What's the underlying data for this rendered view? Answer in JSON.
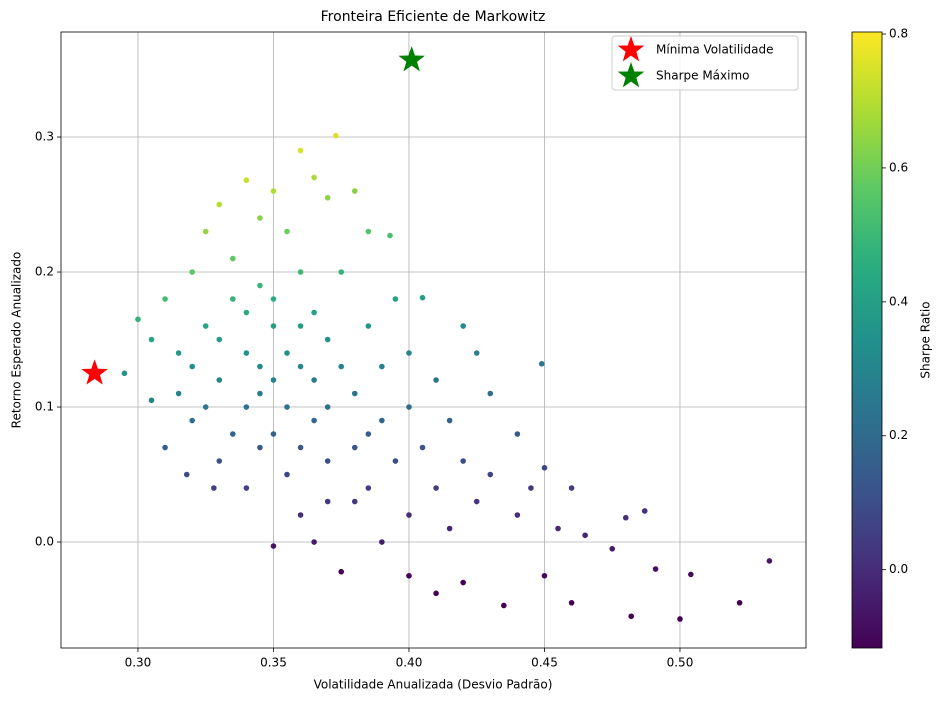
{
  "chart_data": {
    "type": "scatter",
    "title": "Fronteira Eficiente de Markowitz",
    "xlabel": "Volatilidade Anualizada (Desvio Padrão)",
    "ylabel": "Retorno Esperado Anualizado",
    "colorbar_label": "Sharpe Ratio",
    "colormap": "viridis",
    "grid": true,
    "legend": "upper right",
    "xlim": [
      0.2716,
      0.5465
    ],
    "ylim": [
      -0.0785,
      0.3778
    ],
    "clim": [
      -0.117,
      0.803
    ],
    "xticks": [
      {
        "value": 0.3,
        "label": "0.30"
      },
      {
        "value": 0.35,
        "label": "0.35"
      },
      {
        "value": 0.4,
        "label": "0.40"
      },
      {
        "value": 0.45,
        "label": "0.45"
      },
      {
        "value": 0.5,
        "label": "0.50"
      }
    ],
    "yticks": [
      {
        "value": 0,
        "label": "0.0"
      },
      0.1,
      0.2,
      0.3
    ],
    "cticks": [
      {
        "value": 0,
        "label": "0.0"
      },
      0.2,
      0.4,
      0.6,
      0.8
    ],
    "x": [
      0.3,
      0.295,
      0.305,
      0.31,
      0.315,
      0.32,
      0.32,
      0.325,
      0.325,
      0.33,
      0.33,
      0.33,
      0.335,
      0.335,
      0.34,
      0.34,
      0.34,
      0.34,
      0.345,
      0.345,
      0.345,
      0.35,
      0.35,
      0.35,
      0.35,
      0.35,
      0.355,
      0.355,
      0.36,
      0.36,
      0.36,
      0.36,
      0.365,
      0.365,
      0.365,
      0.365,
      0.37,
      0.37,
      0.37,
      0.373,
      0.375,
      0.375,
      0.38,
      0.38,
      0.38,
      0.385,
      0.385,
      0.385,
      0.39,
      0.39,
      0.393,
      0.395,
      0.395,
      0.4,
      0.4,
      0.4,
      0.4,
      0.405,
      0.405,
      0.41,
      0.41,
      0.41,
      0.415,
      0.415,
      0.42,
      0.42,
      0.42,
      0.425,
      0.425,
      0.43,
      0.43,
      0.435,
      0.44,
      0.44,
      0.445,
      0.449,
      0.45,
      0.45,
      0.455,
      0.46,
      0.46,
      0.465,
      0.475,
      0.48,
      0.482,
      0.487,
      0.491,
      0.5,
      0.504,
      0.522,
      0.533,
      0.315,
      0.32,
      0.325,
      0.33,
      0.335,
      0.34,
      0.345,
      0.345,
      0.35,
      0.355,
      0.355,
      0.36,
      0.36,
      0.365,
      0.37,
      0.37,
      0.375,
      0.38,
      0.385,
      0.39,
      0.31,
      0.305,
      0.318,
      0.328
    ],
    "values": [
      0.165,
      0.125,
      0.105,
      0.18,
      0.14,
      0.2,
      0.09,
      0.23,
      0.16,
      0.25,
      0.12,
      0.06,
      0.21,
      0.18,
      0.268,
      0.14,
      0.1,
      0.04,
      0.24,
      0.19,
      0.07,
      0.26,
      0.16,
      0.12,
      0.08,
      -0.003,
      0.23,
      0.05,
      0.29,
      0.2,
      0.13,
      0.02,
      0.27,
      0.17,
      0.09,
      0.0,
      0.255,
      0.15,
      0.06,
      0.301,
      0.2,
      -0.022,
      0.26,
      0.11,
      0.03,
      0.23,
      0.16,
      0.08,
      0.13,
      0.0,
      0.227,
      0.18,
      0.06,
      0.14,
      0.1,
      0.02,
      -0.025,
      0.181,
      0.07,
      0.12,
      0.04,
      -0.038,
      0.09,
      0.01,
      0.16,
      0.06,
      -0.03,
      0.14,
      0.03,
      0.11,
      0.05,
      -0.047,
      0.08,
      0.02,
      0.04,
      0.132,
      0.055,
      -0.025,
      0.01,
      0.04,
      -0.045,
      0.005,
      -0.005,
      0.018,
      -0.055,
      0.023,
      -0.02,
      -0.057,
      -0.024,
      -0.045,
      -0.014,
      0.11,
      0.13,
      0.1,
      0.15,
      0.08,
      0.17,
      0.13,
      0.11,
      0.18,
      0.14,
      0.1,
      0.16,
      0.07,
      0.12,
      0.1,
      0.03,
      0.13,
      0.07,
      0.04,
      0.09,
      0.07,
      0.15,
      0.05,
      0.04
    ],
    "color_values": [
      0.48,
      0.36,
      0.28,
      0.52,
      0.38,
      0.56,
      0.22,
      0.65,
      0.43,
      0.7,
      0.3,
      0.12,
      0.57,
      0.48,
      0.73,
      0.35,
      0.24,
      0.06,
      0.64,
      0.49,
      0.14,
      0.69,
      0.4,
      0.29,
      0.17,
      -0.07,
      0.59,
      0.08,
      0.75,
      0.5,
      0.31,
      0.0,
      0.68,
      0.41,
      0.19,
      -0.05,
      0.64,
      0.35,
      0.11,
      0.75,
      0.48,
      -0.11,
      0.63,
      0.24,
      0.03,
      0.55,
      0.36,
      0.16,
      0.28,
      -0.05,
      0.53,
      0.41,
      0.1,
      0.3,
      0.2,
      0.0,
      -0.11,
      0.4,
      0.12,
      0.24,
      0.05,
      -0.14,
      0.17,
      -0.02,
      0.33,
      0.1,
      -0.12,
      0.28,
      0.02,
      0.21,
      0.07,
      -0.15,
      0.14,
      0.0,
      0.04,
      0.25,
      0.08,
      -0.1,
      -0.02,
      0.04,
      -0.14,
      -0.03,
      -0.05,
      0.0,
      -0.16,
      0.01,
      -0.08,
      -0.15,
      -0.09,
      -0.12,
      -0.06,
      0.29,
      0.34,
      0.25,
      0.39,
      0.18,
      0.44,
      0.32,
      0.26,
      0.46,
      0.34,
      0.23,
      0.39,
      0.14,
      0.27,
      0.22,
      0.03,
      0.29,
      0.13,
      0.05,
      0.18,
      0.16,
      0.43,
      0.09,
      0.06
    ],
    "markers": [
      {
        "name": "Mínima Volatilidade",
        "color": "#ff0000",
        "x": 0.284,
        "y": 0.125
      },
      {
        "name": "Sharpe Máximo",
        "color": "#008000",
        "x": 0.401,
        "y": 0.357
      }
    ]
  }
}
